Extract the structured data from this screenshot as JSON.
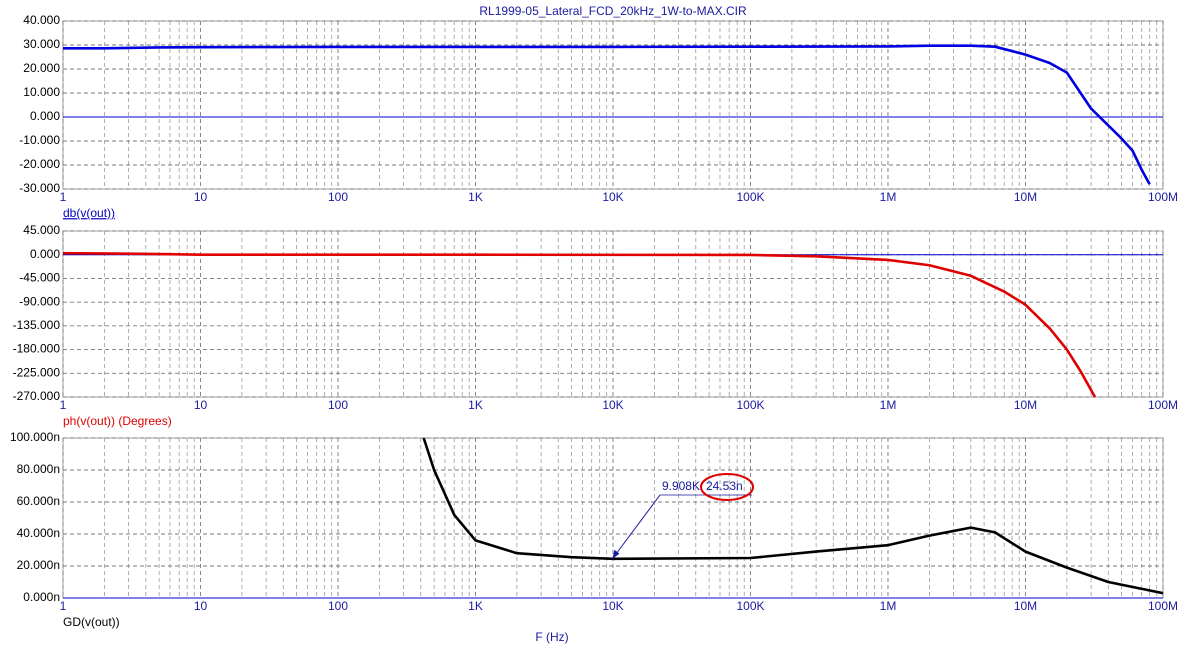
{
  "chart_data": [
    {
      "type": "line",
      "title": "RL1999-05_Lateral_FCD_20kHz_1W-to-MAX.CIR",
      "ylabel": "db(v(out))",
      "xscale": "log",
      "grid": true,
      "xlim": [
        1,
        100000000
      ],
      "xticks": [
        1,
        10,
        100,
        {
          "value": 1000,
          "label": "1K"
        },
        {
          "value": 10000,
          "label": "10K"
        },
        {
          "value": 100000,
          "label": "100K"
        },
        {
          "value": 1000000,
          "label": "1M"
        },
        {
          "value": 10000000,
          "label": "10M"
        },
        {
          "value": 100000000,
          "label": "100M"
        }
      ],
      "ylim": [
        -30,
        40
      ],
      "yticks": [
        {
          "value": 40,
          "label": "40.000"
        },
        {
          "value": 30,
          "label": "30.000"
        },
        {
          "value": 20,
          "label": "20.000"
        },
        {
          "value": 10,
          "label": "10.000"
        },
        {
          "value": 0,
          "label": "0.000"
        },
        {
          "value": -10,
          "label": "-10.000"
        },
        {
          "value": -20,
          "label": "-20.000"
        },
        {
          "value": -30,
          "label": "-30.000"
        }
      ],
      "x": [
        1,
        2,
        5,
        10,
        100,
        1000,
        10000,
        100000,
        1000000,
        2000000,
        4000000,
        6000000,
        10000000,
        15000000,
        20000000,
        30000000,
        40000000,
        50000000,
        60000000,
        70000000,
        80000000
      ],
      "series": [
        {
          "name": "db(v(out))",
          "color": "#0000e0",
          "values": [
            28.6,
            28.6,
            29,
            29.1,
            29.2,
            29.2,
            29.2,
            29.3,
            29.4,
            29.7,
            29.7,
            29.3,
            26,
            22.5,
            18.5,
            3.5,
            -3.5,
            -9,
            -14,
            -22,
            -28
          ]
        }
      ]
    },
    {
      "type": "line",
      "ylabel": "ph(v(out)) (Degrees)",
      "xscale": "log",
      "grid": true,
      "xlim": [
        1,
        100000000
      ],
      "xticks": [
        1,
        10,
        100,
        {
          "value": 1000,
          "label": "1K"
        },
        {
          "value": 10000,
          "label": "10K"
        },
        {
          "value": 100000,
          "label": "100K"
        },
        {
          "value": 1000000,
          "label": "1M"
        },
        {
          "value": 10000000,
          "label": "10M"
        },
        {
          "value": 100000000,
          "label": "100M"
        }
      ],
      "ylim": [
        -270,
        45
      ],
      "yticks": [
        {
          "value": 45,
          "label": "45.000"
        },
        {
          "value": 0,
          "label": "0.000"
        },
        {
          "value": -45,
          "label": "-45.000"
        },
        {
          "value": -90,
          "label": "-90.000"
        },
        {
          "value": -135,
          "label": "-135.000"
        },
        {
          "value": -180,
          "label": "-180.000"
        },
        {
          "value": -225,
          "label": "-225.000"
        },
        {
          "value": -270,
          "label": "-270.000"
        }
      ],
      "x": [
        1,
        3,
        6,
        10,
        1000,
        100000,
        300000,
        1000000,
        2000000,
        4000000,
        7000000,
        10000000,
        15000000,
        20000000,
        25000000,
        32000000
      ],
      "series": [
        {
          "name": "ph(v(out))",
          "color": "#e00000",
          "values": [
            3,
            2,
            1,
            0,
            0,
            -0.5,
            -3,
            -10,
            -20,
            -40,
            -70,
            -95,
            -140,
            -180,
            -220,
            -270
          ]
        }
      ]
    },
    {
      "type": "line",
      "ylabel": "GD(v(out))",
      "xlabel": "F (Hz)",
      "xscale": "log",
      "grid": true,
      "xlim": [
        1,
        100000000
      ],
      "xticks": [
        1,
        10,
        100,
        {
          "value": 1000,
          "label": "1K"
        },
        {
          "value": 10000,
          "label": "10K"
        },
        {
          "value": 100000,
          "label": "100K"
        },
        {
          "value": 1000000,
          "label": "1M"
        },
        {
          "value": 10000000,
          "label": "10M"
        },
        {
          "value": 100000000,
          "label": "100M"
        }
      ],
      "ylim": [
        0,
        100
      ],
      "yticks": [
        {
          "value": 100,
          "label": "100.000n"
        },
        {
          "value": 80,
          "label": "80.000n"
        },
        {
          "value": 60,
          "label": "60.000n"
        },
        {
          "value": 40,
          "label": "40.000n"
        },
        {
          "value": 20,
          "label": "20.000n"
        },
        {
          "value": 0,
          "label": "0.000n"
        }
      ],
      "x": [
        420,
        500,
        700,
        1000,
        2000,
        5000,
        10000,
        100000,
        300000,
        1000000,
        2000000,
        4000000,
        6000000,
        10000000,
        20000000,
        40000000,
        100000000
      ],
      "series": [
        {
          "name": "GD(v(out))",
          "color": "#000000",
          "values": [
            100,
            80,
            52,
            36,
            28,
            25.5,
            24.5,
            25,
            29,
            33,
            39,
            44,
            41,
            29,
            19,
            10,
            3
          ]
        }
      ],
      "annotation": {
        "x": {
          "value": 9908,
          "label": "9.908K"
        },
        "y": {
          "value": 24.53,
          "label": "24.53n"
        }
      }
    }
  ]
}
